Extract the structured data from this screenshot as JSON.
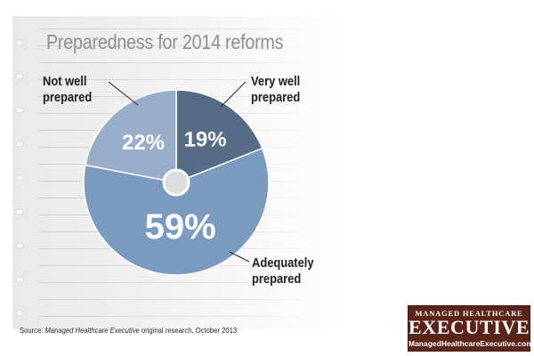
{
  "title": "Preparedness for 2014 reforms",
  "chart_data": {
    "type": "pie",
    "title": "Preparedness for 2014 reforms",
    "slices": [
      {
        "label": "Very well prepared",
        "value": 19,
        "value_label": "19%",
        "color": "#546c86"
      },
      {
        "label": "Adequately prepared",
        "value": 59,
        "value_label": "59%",
        "color": "#7a9ac0"
      },
      {
        "label": "Not well prepared",
        "value": 22,
        "value_label": "22%",
        "color": "#98aec8"
      }
    ],
    "start": "12 o'clock",
    "direction": "clockwise"
  },
  "labels": {
    "not_well_1": "Not well",
    "not_well_2": "prepared",
    "very_well_1": "Very well",
    "very_well_2": "prepared",
    "adequate_1": "Adequately",
    "adequate_2": "prepared"
  },
  "source": {
    "prefix": "Source: ",
    "publication": "Managed Healthcare Executive",
    "suffix": " original research, October 2013"
  },
  "logo": {
    "line1": "MANAGED HEALTHCARE",
    "line2": "EXECUTIVE",
    "line3": "ManagedHealthcareExecutive.com"
  }
}
